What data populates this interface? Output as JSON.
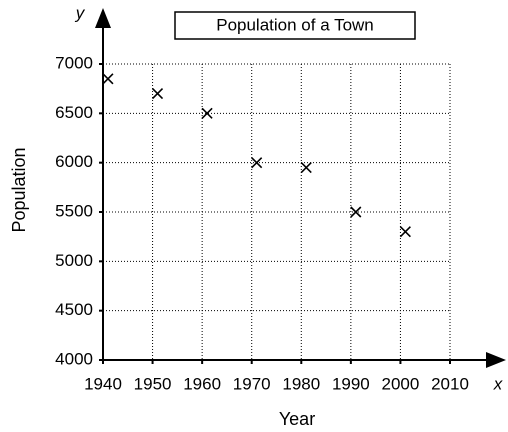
{
  "chart_data": {
    "type": "scatter",
    "title": "Population of a Town",
    "x_label": "Year",
    "y_label": "Population",
    "x_symbol": "x",
    "y_symbol": "y",
    "x": [
      1941,
      1951,
      1961,
      1971,
      1981,
      1991,
      2001
    ],
    "values": [
      6850,
      6700,
      6500,
      6000,
      5950,
      5500,
      5300
    ],
    "marker": "x",
    "color": "#000000",
    "xlim": [
      1940,
      2010
    ],
    "xticks": [
      1940,
      1950,
      1960,
      1970,
      1980,
      1990,
      2000,
      2010
    ],
    "ylim": [
      4000,
      7000
    ],
    "yticks": [
      4000,
      4500,
      5000,
      5500,
      6000,
      6500,
      7000
    ],
    "grid": true
  }
}
